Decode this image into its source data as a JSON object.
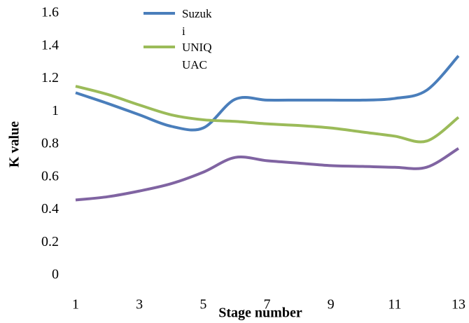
{
  "chart_data": {
    "type": "line",
    "x_label": "Stage number",
    "y_label": "K value",
    "x": [
      1,
      2,
      3,
      4,
      5,
      6,
      7,
      8,
      9,
      10,
      11,
      12,
      13
    ],
    "series": [
      {
        "name": "Suzuki",
        "color": "#4a7ebb",
        "values": [
          1.115,
          1.05,
          0.98,
          0.91,
          0.9,
          1.075,
          1.07,
          1.07,
          1.07,
          1.07,
          1.08,
          1.13,
          1.34
        ]
      },
      {
        "name": "UNIQUAC",
        "color": "#9bbb59",
        "values": [
          1.155,
          1.105,
          1.04,
          0.98,
          0.95,
          0.94,
          0.925,
          0.915,
          0.9,
          0.875,
          0.85,
          0.82,
          0.965
        ]
      },
      {
        "color": "#8064a2",
        "values": [
          0.46,
          0.48,
          0.515,
          0.56,
          0.63,
          0.72,
          0.7,
          0.685,
          0.67,
          0.665,
          0.66,
          0.66,
          0.775
        ]
      }
    ],
    "xlim": [
      1,
      13
    ],
    "xticks": [
      1,
      3,
      5,
      7,
      9,
      11,
      13
    ],
    "ylim": [
      0,
      1.6
    ],
    "yticks": [
      0,
      0.2,
      0.4,
      0.6,
      0.8,
      1,
      1.2,
      1.4,
      1.6
    ],
    "grid": false,
    "legend": "top"
  }
}
